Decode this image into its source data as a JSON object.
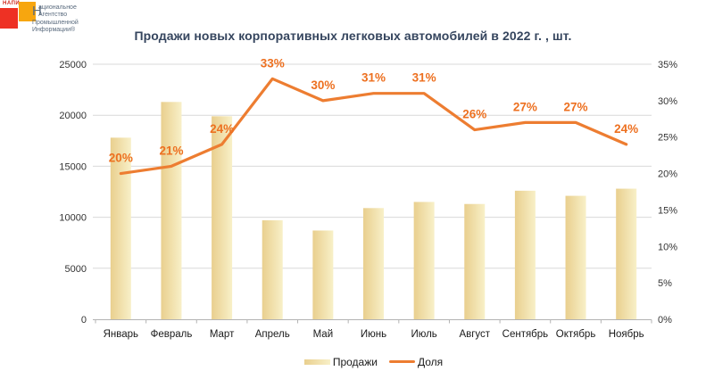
{
  "logo": {
    "mini": "НАПИ",
    "initial": "Н",
    "line1_rest": "ациональное",
    "line2": "Агентство",
    "line3": "Промышленной",
    "line4": "Информации®",
    "red": "#ee3124",
    "orange": "#f7a60f",
    "text_color": "#5a6b7e"
  },
  "title": "Продажи новых корпоративных легковых автомобилей в 2022 г. , шт.",
  "chart_data": {
    "type": "bar+line combo",
    "title": "Продажи новых корпоративных легковых автомобилей в 2022 г. , шт.",
    "categories": [
      "Январь",
      "Февраль",
      "Март",
      "Апрель",
      "Май",
      "Июнь",
      "Июль",
      "Август",
      "Сентябрь",
      "Октябрь",
      "Ноябрь"
    ],
    "series": [
      {
        "name": "Продажи",
        "type": "bar",
        "axis": "left",
        "values": [
          17800,
          21300,
          19900,
          9700,
          8700,
          10900,
          11500,
          11300,
          12600,
          12100,
          12800
        ]
      },
      {
        "name": "Доля",
        "type": "line",
        "axis": "right",
        "values_percent": [
          20,
          21,
          24,
          33,
          30,
          31,
          31,
          26,
          27,
          27,
          24
        ],
        "labels": [
          "20%",
          "21%",
          "24%",
          "33%",
          "30%",
          "31%",
          "31%",
          "26%",
          "27%",
          "27%",
          "24%"
        ]
      }
    ],
    "left_axis": {
      "min": 0,
      "max": 25000,
      "step": 5000,
      "ticks": [
        "0",
        "5000",
        "10000",
        "15000",
        "20000",
        "25000"
      ]
    },
    "right_axis": {
      "min": 0,
      "max": 35,
      "step": 5,
      "ticks": [
        "0%",
        "5%",
        "10%",
        "15%",
        "20%",
        "25%",
        "30%",
        "35%"
      ]
    },
    "colors": {
      "bar_gradient_start": "#e9cf8e",
      "bar_gradient_end": "#f8f0c8",
      "line": "#ed7d31",
      "data_label": "#ed7020",
      "grid": "#d9d9d9",
      "axis": "#b3b3b3",
      "tick_text": "#333333",
      "title": "#35455e"
    },
    "grid": true,
    "legend_position": "bottom"
  },
  "legend": {
    "items": [
      {
        "label": "Продажи",
        "swatch": "bar"
      },
      {
        "label": "Доля",
        "swatch": "line"
      }
    ]
  }
}
